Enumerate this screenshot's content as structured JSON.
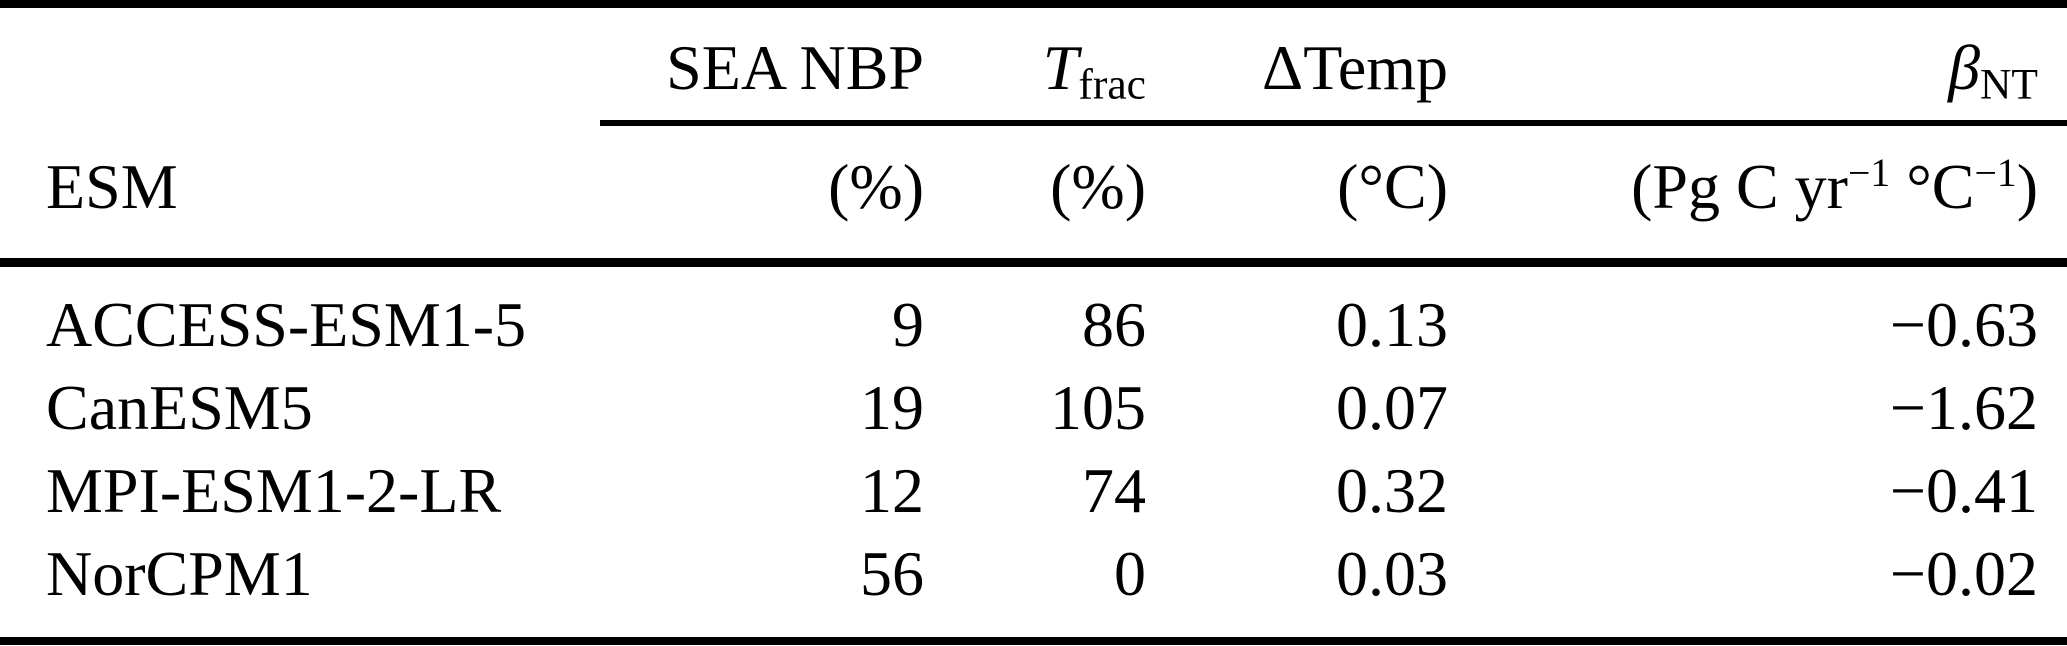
{
  "page": {
    "background": "#ffffff",
    "text_color": "#000000",
    "rule_color": "#000000"
  },
  "table": {
    "header": {
      "esm_label": "ESM",
      "sea_nbp": {
        "title": "SEA NBP",
        "unit": "(%)"
      },
      "t_frac": {
        "symbol": "T",
        "subscript": "frac",
        "unit": "(%)"
      },
      "delta_temp": {
        "title": "ΔTemp",
        "unit": "(°C)"
      },
      "beta_nt": {
        "symbol": "β",
        "subscript": "NT",
        "unit_prefix": "(Pg C yr",
        "unit_sup_1": "−1",
        "unit_mid": " °C",
        "unit_sup_2": "−1",
        "unit_suffix": ")"
      }
    },
    "rows": [
      {
        "esm": "ACCESS-ESM1-5",
        "sea_nbp": "9",
        "t_frac": "86",
        "delta_temp": "0.13",
        "beta_nt": "−0.63"
      },
      {
        "esm": "CanESM5",
        "sea_nbp": "19",
        "t_frac": "105",
        "delta_temp": "0.07",
        "beta_nt": "−1.62"
      },
      {
        "esm": "MPI-ESM1-2-LR",
        "sea_nbp": "12",
        "t_frac": "74",
        "delta_temp": "0.32",
        "beta_nt": "−0.41"
      },
      {
        "esm": "NorCPM1",
        "sea_nbp": "56",
        "t_frac": "0",
        "delta_temp": "0.03",
        "beta_nt": "−0.02"
      }
    ]
  }
}
